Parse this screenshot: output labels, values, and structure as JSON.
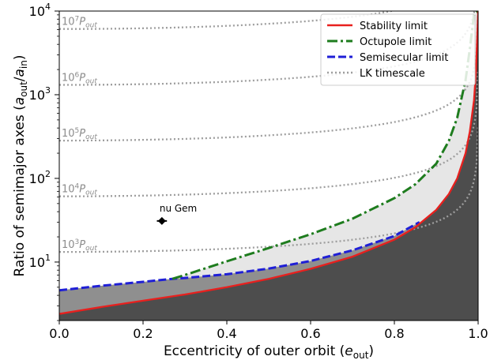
{
  "chart_data": {
    "type": "line",
    "xlabel_main": "Eccentricity of outer orbit (",
    "xlabel_var": "e",
    "xlabel_sub": "out",
    "xlabel_end": ")",
    "ylabel_main": "Ratio of semimajor axes (",
    "ylabel_num": "a",
    "ylabel_num_sub": "out",
    "ylabel_slash": "/",
    "ylabel_den": "a",
    "ylabel_den_sub": "in",
    "ylabel_end": ")",
    "xlim": [
      0,
      1
    ],
    "ylim": [
      2,
      10000
    ],
    "yscale": "log",
    "grid": false,
    "legend_position": "top-right",
    "x_ticks": [
      {
        "value": 0.0,
        "label": "0.0"
      },
      {
        "value": 0.2,
        "label": "0.2"
      },
      {
        "value": 0.4,
        "label": "0.4"
      },
      {
        "value": 0.6,
        "label": "0.6"
      },
      {
        "value": 0.8,
        "label": "0.8"
      },
      {
        "value": 1.0,
        "label": "1.0"
      }
    ],
    "y_ticks": [
      {
        "value": 10,
        "base": "10",
        "exp": "1"
      },
      {
        "value": 100,
        "base": "10",
        "exp": "2"
      },
      {
        "value": 1000,
        "base": "10",
        "exp": "3"
      },
      {
        "value": 10000,
        "base": "10",
        "exp": "4"
      }
    ],
    "series": [
      {
        "name": "Stability limit",
        "color": "#e8201e",
        "dash": "solid",
        "x": [
          0.0,
          0.1,
          0.2,
          0.3,
          0.4,
          0.5,
          0.6,
          0.7,
          0.8,
          0.85,
          0.9,
          0.93,
          0.95,
          0.97,
          0.98,
          0.99,
          0.995,
          1.0
        ],
        "y": [
          2.4,
          2.9,
          3.45,
          4.1,
          5.0,
          6.3,
          8.3,
          11.6,
          18.5,
          26,
          42,
          65,
          100,
          200,
          360,
          850,
          2000,
          10000
        ]
      },
      {
        "name": "Octupole limit",
        "color": "#1e7c1e",
        "dash": "dashdot",
        "x": [
          0.27,
          0.3,
          0.4,
          0.5,
          0.6,
          0.7,
          0.8,
          0.85,
          0.9,
          0.93,
          0.95,
          0.97,
          0.98,
          0.99,
          1.0
        ],
        "y": [
          6.3,
          7.0,
          10.2,
          14.7,
          21.5,
          33,
          58,
          85,
          150,
          280,
          530,
          1500,
          3500,
          9000,
          10000
        ]
      },
      {
        "name": "Semisecular limit",
        "color": "#1f1fd6",
        "dash": "dashed",
        "x": [
          0.0,
          0.1,
          0.2,
          0.27,
          0.3,
          0.4,
          0.5,
          0.6,
          0.7,
          0.8,
          0.86
        ],
        "y": [
          4.6,
          5.2,
          5.8,
          6.3,
          6.45,
          7.15,
          8.35,
          10.3,
          13.8,
          20.5,
          30
        ]
      }
    ],
    "lk_timescale": {
      "name": "LK timescale",
      "color": "#9e9e9e",
      "curves": [
        {
          "label_base": "10",
          "label_exp": "3",
          "label_var": "P",
          "label_sub": "out",
          "y0": 13.2
        },
        {
          "label_base": "10",
          "label_exp": "4",
          "label_var": "P",
          "label_sub": "out",
          "y0": 61
        },
        {
          "label_base": "10",
          "label_exp": "5",
          "label_var": "P",
          "label_sub": "out",
          "y0": 283
        },
        {
          "label_base": "10",
          "label_exp": "6",
          "label_var": "P",
          "label_sub": "out",
          "y0": 1310
        },
        {
          "label_base": "10",
          "label_exp": "7",
          "label_var": "P",
          "label_sub": "out",
          "y0": 6100
        }
      ]
    },
    "point": {
      "name": "nu Gem",
      "x": 0.245,
      "y": 31,
      "xerr": 0.012,
      "yerr": 2.5,
      "color": "#000000"
    },
    "fills": {
      "light_color": "#e6e6e6",
      "mid_color": "#8f8f8f",
      "dark_color": "#4d4d4d"
    }
  }
}
